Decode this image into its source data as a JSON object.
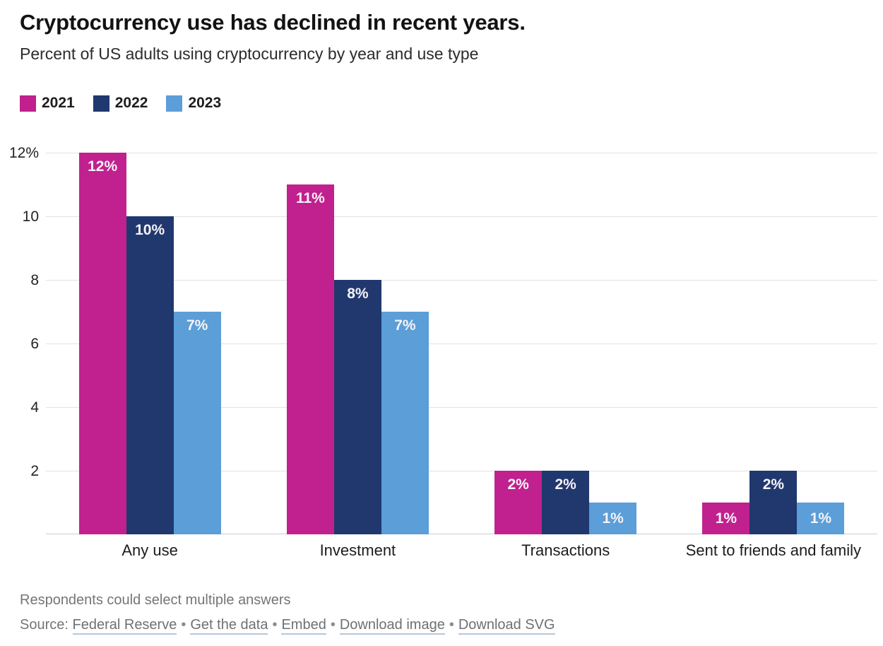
{
  "header": {
    "title": "Cryptocurrency use has declined in recent years.",
    "subtitle": "Percent of US adults using cryptocurrency by year and use type"
  },
  "chart_data": {
    "type": "bar",
    "title": "Cryptocurrency use has declined in recent years.",
    "subtitle": "Percent of US adults using cryptocurrency by year and use type",
    "categories": [
      "Any use",
      "Investment",
      "Transactions",
      "Sent to friends and family"
    ],
    "series": [
      {
        "name": "2021",
        "color": "#c0218f",
        "values": [
          12,
          11,
          2,
          1
        ]
      },
      {
        "name": "2022",
        "color": "#20386e",
        "values": [
          10,
          8,
          2,
          2
        ]
      },
      {
        "name": "2023",
        "color": "#5c9ed7",
        "values": [
          7,
          7,
          1,
          1
        ]
      }
    ],
    "value_suffix": "%",
    "ylim": [
      0,
      12
    ],
    "y_ticks": [
      {
        "value": 12,
        "label": "12%"
      },
      {
        "value": 10,
        "label": "10"
      },
      {
        "value": 8,
        "label": "8"
      },
      {
        "value": 6,
        "label": "6"
      },
      {
        "value": 4,
        "label": "4"
      },
      {
        "value": 2,
        "label": "2"
      }
    ],
    "grid": true,
    "legend_position": "top-left"
  },
  "footer": {
    "note": "Respondents could select multiple answers",
    "source_prefix": "Source:",
    "separator": "•",
    "links": [
      "Federal Reserve",
      "Get the data",
      "Embed",
      "Download image",
      "Download SVG"
    ]
  }
}
